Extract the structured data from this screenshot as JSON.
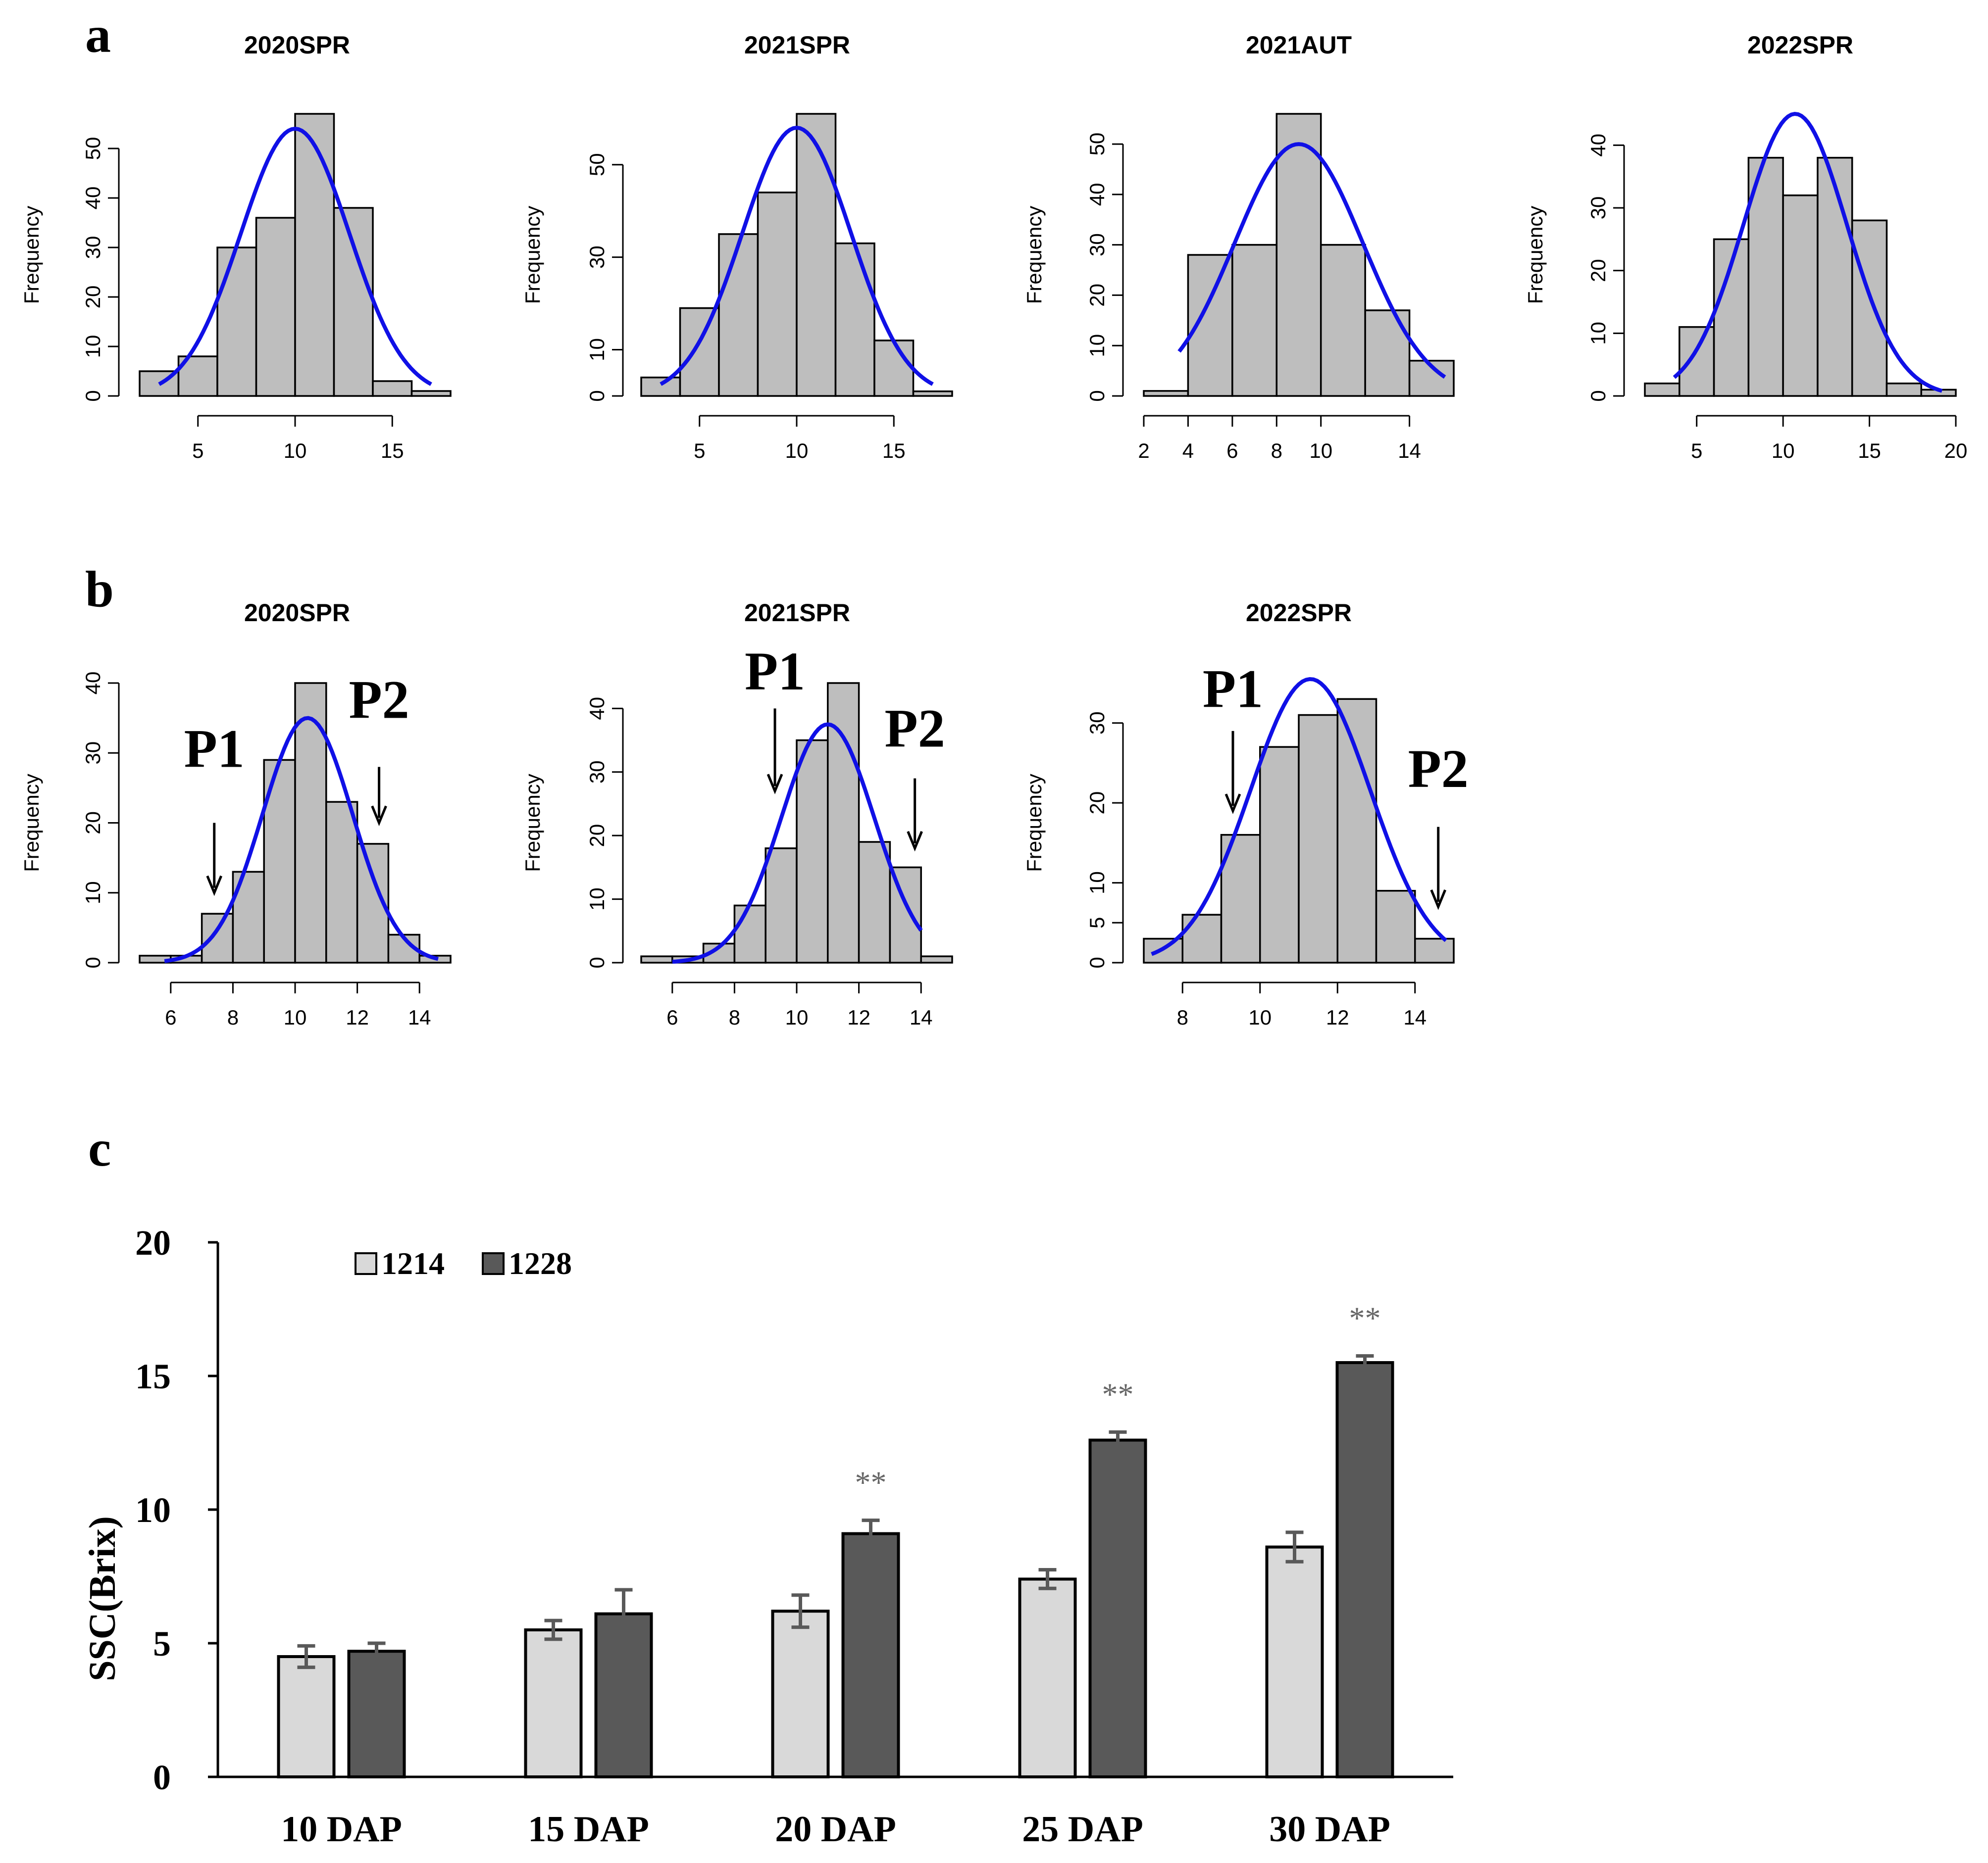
{
  "panels": {
    "a": "a",
    "b": "b",
    "c": "c"
  },
  "hist_a": [
    {
      "title": "2020SPR",
      "ylabel": "Frequency",
      "bins": [
        [
          2,
          4,
          5
        ],
        [
          4,
          6,
          8
        ],
        [
          6,
          8,
          30
        ],
        [
          8,
          10,
          36
        ],
        [
          10,
          12,
          57
        ],
        [
          12,
          14,
          38
        ],
        [
          14,
          16,
          3
        ],
        [
          16,
          18,
          1
        ]
      ],
      "xticks": [
        5,
        10,
        15
      ],
      "xrange": [
        2,
        18
      ],
      "yticks": [
        0,
        10,
        20,
        30,
        40,
        50
      ],
      "ymax": 57,
      "curve": {
        "mean": 10,
        "sd": 2.8,
        "peak": 54,
        "from": 3,
        "to": 17
      }
    },
    {
      "title": "2021SPR",
      "ylabel": "Frequency",
      "bins": [
        [
          2,
          4,
          4
        ],
        [
          4,
          6,
          19
        ],
        [
          6,
          8,
          35
        ],
        [
          8,
          10,
          44
        ],
        [
          10,
          12,
          61
        ],
        [
          12,
          14,
          33
        ],
        [
          14,
          16,
          12
        ],
        [
          16,
          18,
          1
        ]
      ],
      "xticks": [
        5,
        10,
        15
      ],
      "xrange": [
        2,
        18
      ],
      "yticks": [
        0,
        10,
        30,
        50
      ],
      "ymax": 61,
      "curve": {
        "mean": 10,
        "sd": 2.8,
        "peak": 58,
        "from": 3,
        "to": 17
      }
    },
    {
      "title": "2021AUT",
      "ylabel": "Frequency",
      "bins": [
        [
          2,
          4,
          1
        ],
        [
          4,
          6,
          28
        ],
        [
          6,
          8,
          30
        ],
        [
          8,
          10,
          56
        ],
        [
          10,
          12,
          30
        ],
        [
          12,
          14,
          17
        ],
        [
          14,
          16,
          7
        ]
      ],
      "xticks": [
        2,
        4,
        6,
        8,
        10,
        14
      ],
      "xrange": [
        2,
        16
      ],
      "yticks": [
        0,
        10,
        20,
        30,
        40,
        50
      ],
      "ymax": 56,
      "curve": {
        "mean": 9,
        "sd": 2.9,
        "peak": 50,
        "from": 3.6,
        "to": 15.6
      }
    },
    {
      "title": "2022SPR",
      "ylabel": "Frequency",
      "bins": [
        [
          2,
          4,
          2
        ],
        [
          4,
          6,
          11
        ],
        [
          6,
          8,
          25
        ],
        [
          8,
          10,
          38
        ],
        [
          10,
          12,
          32
        ],
        [
          12,
          14,
          38
        ],
        [
          14,
          16,
          28
        ],
        [
          16,
          18,
          2
        ],
        [
          18,
          20,
          1
        ]
      ],
      "xticks": [
        5,
        10,
        15,
        20
      ],
      "xrange": [
        2,
        20
      ],
      "yticks": [
        0,
        10,
        20,
        30,
        40
      ],
      "ymax": 45,
      "curve": {
        "mean": 10.7,
        "sd": 3.0,
        "peak": 45,
        "from": 3.7,
        "to": 19.2
      }
    }
  ],
  "hist_b": [
    {
      "title": "2020SPR",
      "ylabel": "Frequency",
      "bins": [
        [
          5,
          6,
          1
        ],
        [
          6,
          7,
          1
        ],
        [
          7,
          8,
          7
        ],
        [
          8,
          9,
          13
        ],
        [
          9,
          10,
          29
        ],
        [
          10,
          11,
          40
        ],
        [
          11,
          12,
          23
        ],
        [
          12,
          13,
          17
        ],
        [
          13,
          14,
          4
        ],
        [
          14,
          15,
          1
        ]
      ],
      "xticks": [
        6,
        8,
        10,
        12,
        14
      ],
      "xrange": [
        5,
        15
      ],
      "yticks": [
        0,
        10,
        20,
        30,
        40
      ],
      "ymax": 40,
      "curve": {
        "mean": 10.4,
        "sd": 1.45,
        "peak": 35,
        "from": 5.8,
        "to": 14.6
      },
      "arrows": [
        {
          "label": "P1",
          "x": 7.4,
          "tip": 10,
          "tail": 20,
          "labelY": 28
        },
        {
          "label": "P2",
          "x": 12.7,
          "tip": 20,
          "tail": 28,
          "labelY": 35
        }
      ]
    },
    {
      "title": "2021SPR",
      "ylabel": "Frequency",
      "bins": [
        [
          5,
          6,
          1
        ],
        [
          6,
          7,
          1
        ],
        [
          7,
          8,
          3
        ],
        [
          8,
          9,
          9
        ],
        [
          9,
          10,
          18
        ],
        [
          10,
          11,
          35
        ],
        [
          11,
          12,
          44
        ],
        [
          12,
          13,
          19
        ],
        [
          13,
          14,
          15
        ],
        [
          14,
          15,
          1
        ]
      ],
      "xticks": [
        6,
        8,
        10,
        12,
        14
      ],
      "xrange": [
        5,
        15
      ],
      "yticks": [
        0,
        10,
        20,
        30,
        40
      ],
      "ymax": 44,
      "curve": {
        "mean": 11.0,
        "sd": 1.5,
        "peak": 37.5,
        "from": 6,
        "to": 14
      },
      "arrows": [
        {
          "label": "P1",
          "x": 9.3,
          "tip": 27,
          "tail": 40,
          "labelY": 43
        },
        {
          "label": "P2",
          "x": 13.8,
          "tip": 18,
          "tail": 29,
          "labelY": 34
        }
      ]
    },
    {
      "title": "2022SPR",
      "ylabel": "Frequency",
      "bins": [
        [
          7,
          8,
          3
        ],
        [
          8,
          9,
          6
        ],
        [
          9,
          10,
          16
        ],
        [
          10,
          11,
          27
        ],
        [
          11,
          12,
          31
        ],
        [
          12,
          13,
          33
        ],
        [
          13,
          14,
          9
        ],
        [
          14,
          15,
          3
        ]
      ],
      "xticks": [
        8,
        10,
        12,
        14
      ],
      "xrange": [
        7,
        15
      ],
      "yticks": [
        0,
        5,
        10,
        20,
        30
      ],
      "ymax": 35,
      "curve": {
        "mean": 11.3,
        "sd": 1.55,
        "peak": 35.5,
        "from": 7.2,
        "to": 14.8
      },
      "arrows": [
        {
          "label": "P1",
          "x": 9.3,
          "tip": 19,
          "tail": 29,
          "labelY": 32
        },
        {
          "label": "P2",
          "x": 14.6,
          "tip": 7,
          "tail": 17,
          "labelY": 22
        }
      ]
    }
  ],
  "chart_data": {
    "type": "bar",
    "categories": [
      "10 DAP",
      "15 DAP",
      "20 DAP",
      "25 DAP",
      "30 DAP"
    ],
    "series": [
      {
        "name": "1214",
        "values": [
          4.5,
          5.5,
          6.2,
          7.4,
          8.6
        ],
        "errors": [
          0.4,
          0.35,
          0.6,
          0.35,
          0.55
        ],
        "color": "#d9d9d9"
      },
      {
        "name": "1228",
        "values": [
          4.7,
          6.1,
          9.1,
          12.6,
          15.5
        ],
        "errors": [
          0.3,
          0.9,
          0.5,
          0.3,
          0.25
        ],
        "color": "#595959"
      }
    ],
    "significance": [
      "",
      "",
      "**",
      "**",
      "**"
    ],
    "ylabel": "SSC(Brix)",
    "ylim": [
      0,
      20
    ],
    "yticks": [
      0,
      5,
      10,
      15,
      20
    ]
  }
}
